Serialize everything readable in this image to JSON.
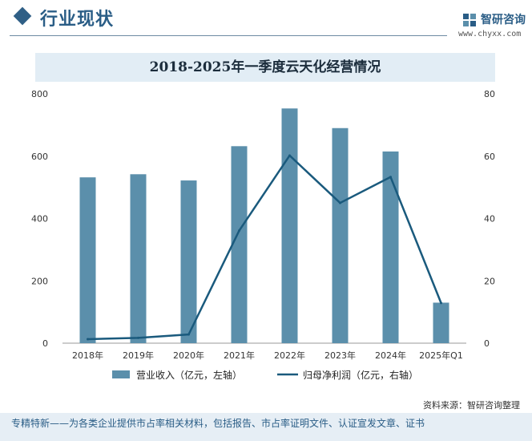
{
  "header": {
    "section_title": "行业现状",
    "brand_name": "智研咨询",
    "brand_url": "www.chyxx.com"
  },
  "chart_data": {
    "type": "bar",
    "title": "2018-2025年一季度云天化经营情况",
    "categories": [
      "2018年",
      "2019年",
      "2020年",
      "2021年",
      "2022年",
      "2023年",
      "2024年",
      "2025年Q1"
    ],
    "series": [
      {
        "name": "营业收入（亿元，左轴）",
        "type": "bar",
        "axis": "left",
        "color": "#5b8fab",
        "values": [
          532,
          542,
          522,
          632,
          753,
          690,
          615,
          130
        ]
      },
      {
        "name": "归母净利润（亿元，右轴）",
        "type": "line",
        "axis": "right",
        "color": "#1a5a7d",
        "values": [
          1.3,
          1.7,
          2.8,
          36.1,
          60.2,
          45,
          53.3,
          12.9
        ]
      }
    ],
    "y_left": {
      "min": 0,
      "max": 800,
      "ticks": [
        "0",
        "200",
        "400",
        "600",
        "800"
      ]
    },
    "y_right": {
      "min": 0,
      "max": 80,
      "ticks": [
        "0",
        "20",
        "40",
        "60",
        "80"
      ]
    },
    "grid": false,
    "legend_position": "bottom"
  },
  "footer": {
    "source": "资料来源：智研咨询整理",
    "tagline": "专精特新——为各类企业提供市占率相关材料，包括报告、市占率证明文件、认证宣发文章、证书"
  }
}
